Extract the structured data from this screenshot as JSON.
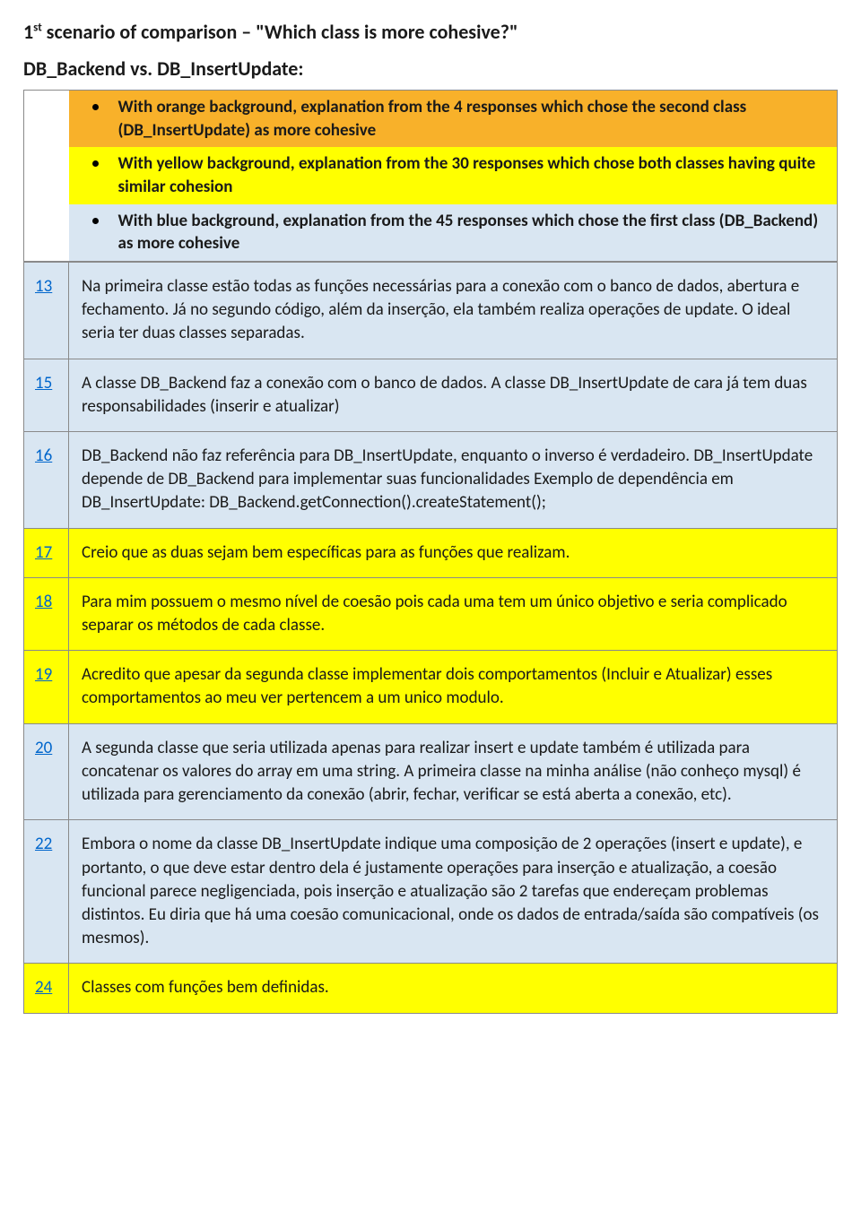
{
  "colors": {
    "orange": "#f8b12a",
    "yellow": "#ffff00",
    "blue": "#d9e6f2",
    "border": "#8a8a8a",
    "link": "#0066cc",
    "text": "#1a1a1a"
  },
  "typography": {
    "font_family": "Calibri",
    "title_fontsize": 22,
    "body_fontsize": 19
  },
  "heading": {
    "ordinal_num": "1",
    "ordinal_suffix": "st",
    "rest": " scenario of comparison – \"Which class is more cohesive?\""
  },
  "subheading": "DB_Backend vs. DB_InsertUpdate:",
  "legend": [
    {
      "bg": "bg-orange",
      "text": "With orange background, explanation from the 4 responses which chose the second class (DB_InsertUpdate) as more cohesive"
    },
    {
      "bg": "bg-yellow",
      "text": "With yellow background, explanation from the 30 responses which chose both classes having quite similar cohesion"
    },
    {
      "bg": "bg-blue",
      "text": "With blue background, explanation from the 45 responses which chose the first class (DB_Backend) as more cohesive"
    }
  ],
  "rows": [
    {
      "id": "13",
      "bg": "bg-blue",
      "text": "Na primeira classe estão todas as funções necessárias para a conexão com o banco de dados, abertura e fechamento. Já no segundo código, além da inserção, ela também realiza operações de update. O ideal seria ter duas classes separadas."
    },
    {
      "id": "15",
      "bg": "bg-blue",
      "text": "A classe DB_Backend faz a conexão com o banco de dados. A classe DB_InsertUpdate de cara já tem duas responsabilidades (inserir e atualizar)"
    },
    {
      "id": "16",
      "bg": "bg-blue",
      "text": "DB_Backend não faz referência para DB_InsertUpdate, enquanto o inverso é verdadeiro. DB_InsertUpdate depende de DB_Backend para implementar suas funcionalidades Exemplo de dependência em DB_InsertUpdate: DB_Backend.getConnection().createStatement();"
    },
    {
      "id": "17",
      "bg": "bg-yellow",
      "text": "Creio que as duas sejam bem específicas para as funções que realizam."
    },
    {
      "id": "18",
      "bg": "bg-yellow",
      "text": "Para mim possuem o mesmo nível de coesão pois cada uma tem um único objetivo e seria complicado separar os métodos de cada classe."
    },
    {
      "id": "19",
      "bg": "bg-yellow",
      "text": "Acredito que apesar da segunda classe implementar dois comportamentos (Incluir e Atualizar) esses comportamentos ao meu ver pertencem a um unico modulo."
    },
    {
      "id": "20",
      "bg": "bg-blue",
      "text": "A segunda classe que seria utilizada apenas para realizar insert e update também é utilizada para concatenar os valores do array em uma string. A primeira classe na minha análise (não conheço mysql) é utilizada para gerenciamento da conexão (abrir, fechar, verificar se está aberta a conexão, etc)."
    },
    {
      "id": "22",
      "bg": "bg-blue",
      "text": "Embora o nome da classe DB_InsertUpdate indique uma composição de 2 operações (insert e update), e portanto, o que deve estar dentro dela é justamente operações para inserção e atualização, a coesão funcional parece negligenciada, pois inserção e atualização são 2 tarefas que endereçam problemas distintos. Eu diria que há uma coesão comunicacional, onde os dados de entrada/saída são compatíveis (os mesmos)."
    },
    {
      "id": "24",
      "bg": "bg-yellow",
      "text": "Classes com funções bem definidas."
    }
  ]
}
